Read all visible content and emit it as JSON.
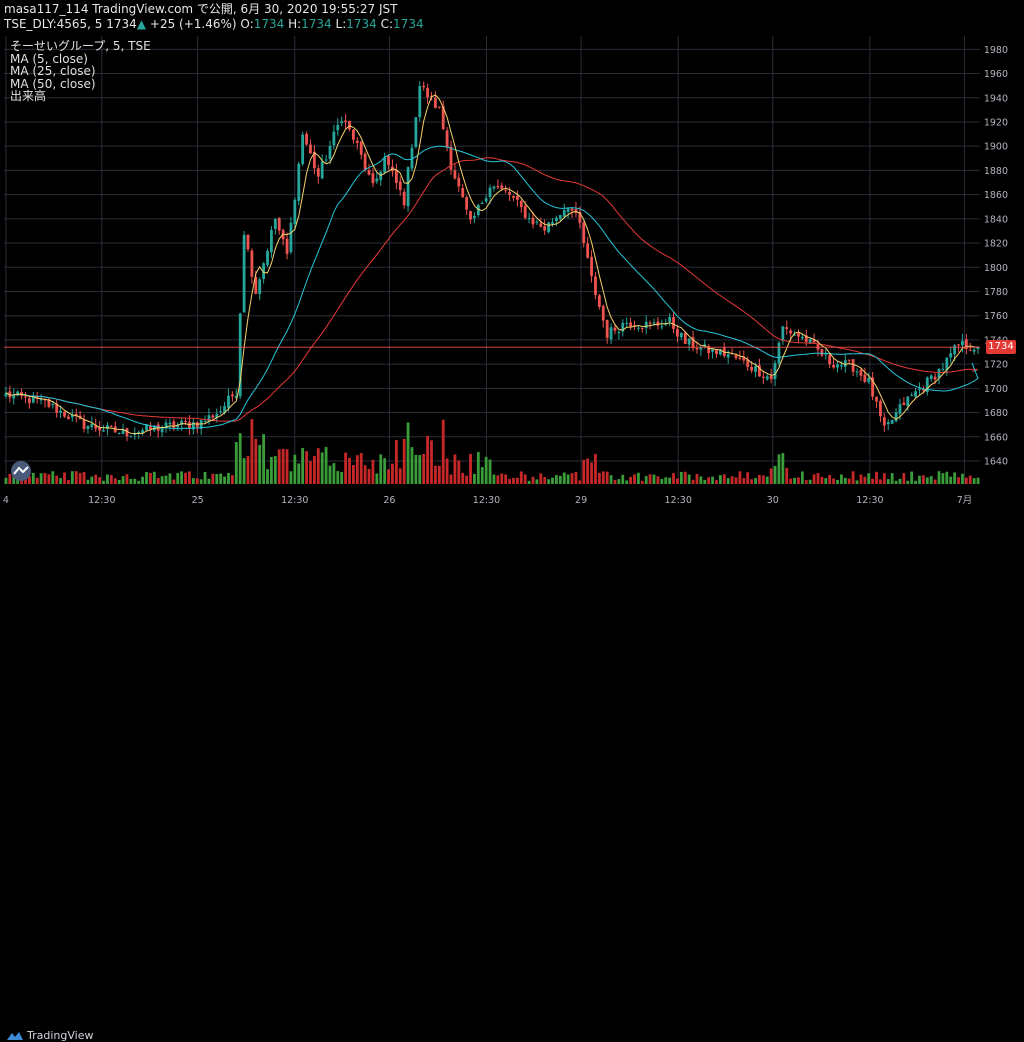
{
  "header": {
    "line1": "masa117_114 TradingView.com で公開, 6月 30, 2020 19:55:27 JST",
    "symbol": "TSE_DLY:4565, 5",
    "last": "1734",
    "change": "+25 (+1.46%)",
    "o_label": "O:",
    "o_value": "1734",
    "h_label": "H:",
    "h_value": "1734",
    "l_label": "L:",
    "l_value": "1734",
    "c_label": "C:",
    "c_value": "1734"
  },
  "legend": {
    "title": "そーせいグループ, 5, TSE",
    "ma5": "MA (5, close)",
    "ma25": "MA (25, close)",
    "ma50": "MA (50, close)",
    "volume": "出来高"
  },
  "price_tag": "1734",
  "footer": {
    "brand": "TradingView"
  },
  "colors": {
    "up": "#26a69a",
    "down": "#ef5350",
    "vol_up": "#3a9d3a",
    "vol_down": "#c62828",
    "ma5": "#f5d26b",
    "ma25": "#26c6da",
    "ma50": "#e53935",
    "grid": "#2a2e39",
    "background": "#000000"
  },
  "chart_data": {
    "type": "candlestick",
    "y_ticks": [
      1640,
      1660,
      1680,
      1700,
      1720,
      1740,
      1760,
      1780,
      1800,
      1820,
      1840,
      1860,
      1880,
      1900,
      1920,
      1940,
      1960,
      1980
    ],
    "ylim": [
      1621,
      1991
    ],
    "x_ticks": [
      "4",
      "12:30",
      "25",
      "12:30",
      "26",
      "12:30",
      "29",
      "12:30",
      "30",
      "12:30",
      "7月"
    ],
    "last_price": 1734,
    "price_key": [
      {
        "bar": 0,
        "p": 1695
      },
      {
        "bar": 10,
        "p": 1688
      },
      {
        "bar": 20,
        "p": 1670
      },
      {
        "bar": 30,
        "p": 1663
      },
      {
        "bar": 40,
        "p": 1668
      },
      {
        "bar": 50,
        "p": 1672
      },
      {
        "bar": 55,
        "p": 1682
      },
      {
        "bar": 59,
        "p": 1698
      },
      {
        "bar": 61,
        "p": 1830
      },
      {
        "bar": 64,
        "p": 1780
      },
      {
        "bar": 69,
        "p": 1840
      },
      {
        "bar": 72,
        "p": 1810
      },
      {
        "bar": 76,
        "p": 1910
      },
      {
        "bar": 80,
        "p": 1875
      },
      {
        "bar": 86,
        "p": 1925
      },
      {
        "bar": 90,
        "p": 1900
      },
      {
        "bar": 94,
        "p": 1865
      },
      {
        "bar": 97,
        "p": 1890
      },
      {
        "bar": 102,
        "p": 1855
      },
      {
        "bar": 106,
        "p": 1950
      },
      {
        "bar": 111,
        "p": 1930
      },
      {
        "bar": 114,
        "p": 1885
      },
      {
        "bar": 119,
        "p": 1835
      },
      {
        "bar": 124,
        "p": 1868
      },
      {
        "bar": 129,
        "p": 1860
      },
      {
        "bar": 134,
        "p": 1840
      },
      {
        "bar": 138,
        "p": 1832
      },
      {
        "bar": 144,
        "p": 1852
      },
      {
        "bar": 147,
        "p": 1835
      },
      {
        "bar": 150,
        "p": 1790
      },
      {
        "bar": 154,
        "p": 1745
      },
      {
        "bar": 159,
        "p": 1755
      },
      {
        "bar": 165,
        "p": 1752
      },
      {
        "bar": 170,
        "p": 1755
      },
      {
        "bar": 174,
        "p": 1738
      },
      {
        "bar": 179,
        "p": 1732
      },
      {
        "bar": 185,
        "p": 1728
      },
      {
        "bar": 191,
        "p": 1718
      },
      {
        "bar": 196,
        "p": 1708
      },
      {
        "bar": 199,
        "p": 1750
      },
      {
        "bar": 205,
        "p": 1740
      },
      {
        "bar": 211,
        "p": 1722
      },
      {
        "bar": 217,
        "p": 1718
      },
      {
        "bar": 221,
        "p": 1705
      },
      {
        "bar": 225,
        "p": 1665
      },
      {
        "bar": 230,
        "p": 1688
      },
      {
        "bar": 235,
        "p": 1702
      },
      {
        "bar": 240,
        "p": 1718
      },
      {
        "bar": 244,
        "p": 1736
      },
      {
        "bar": 249,
        "p": 1734
      }
    ],
    "ma25_end": 1721,
    "ma50_end": 1714,
    "bars": 250
  }
}
